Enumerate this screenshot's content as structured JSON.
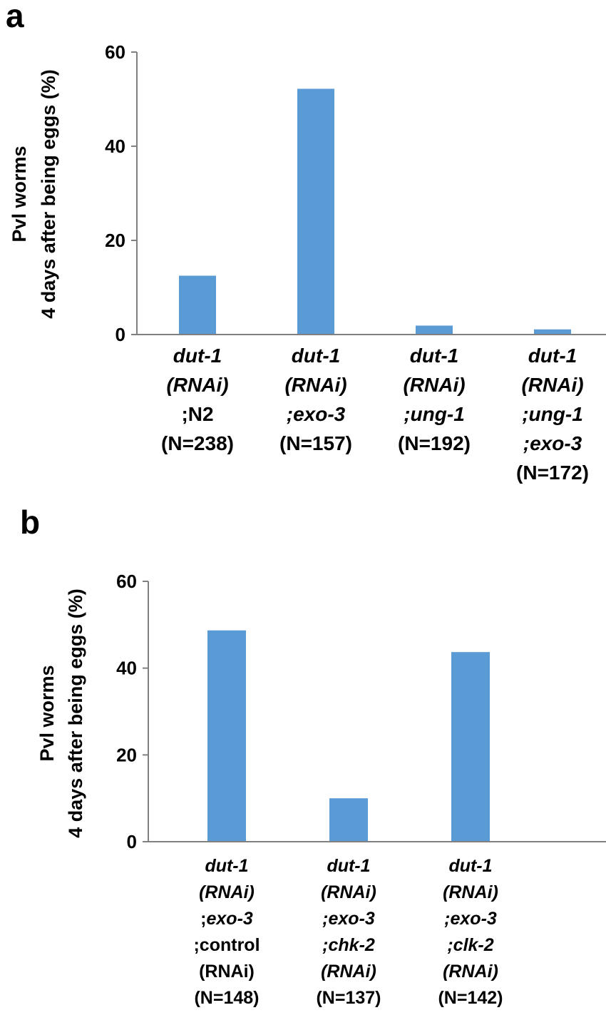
{
  "chart_data": [
    {
      "type": "bar",
      "panel": "a",
      "ylabel_lines": [
        "Pvl worms",
        "4 days after being eggs (%)"
      ],
      "ylim": [
        0,
        60
      ],
      "yticks": [
        0,
        20,
        40,
        60
      ],
      "categories": [
        [
          [
            {
              "t": "dut-1",
              "i": true
            }
          ],
          [
            {
              "t": "(RNAi)",
              "i": true
            }
          ],
          [
            {
              "t": ";N2",
              "i": false
            }
          ],
          [
            {
              "t": "(N=238)",
              "i": false
            }
          ]
        ],
        [
          [
            {
              "t": "dut-1",
              "i": true
            }
          ],
          [
            {
              "t": "(RNAi)",
              "i": true
            }
          ],
          [
            {
              "t": ";exo-3",
              "i": true
            }
          ],
          [
            {
              "t": "(N=157)",
              "i": false
            }
          ]
        ],
        [
          [
            {
              "t": "dut-1",
              "i": true
            }
          ],
          [
            {
              "t": "(RNAi)",
              "i": true
            }
          ],
          [
            {
              "t": ";ung-1",
              "i": true
            }
          ],
          [
            {
              "t": "(N=192)",
              "i": false
            }
          ]
        ],
        [
          [
            {
              "t": "dut-1",
              "i": true
            }
          ],
          [
            {
              "t": "(RNAi)",
              "i": true
            }
          ],
          [
            {
              "t": ";ung-1",
              "i": true
            }
          ],
          [
            {
              "t": ";exo-3",
              "i": true
            }
          ],
          [
            {
              "t": "(N=172)",
              "i": false
            }
          ]
        ]
      ],
      "values": [
        12.5,
        52.2,
        1.9,
        1.1
      ],
      "bar_color": "#5B9BD5"
    },
    {
      "type": "bar",
      "panel": "b",
      "ylabel_lines": [
        "Pvl worms",
        "4 days after being eggs (%)"
      ],
      "ylim": [
        0,
        60
      ],
      "yticks": [
        0,
        20,
        40,
        60
      ],
      "categories": [
        [
          [
            {
              "t": "dut-1",
              "i": true
            }
          ],
          [
            {
              "t": "(RNAi)",
              "i": true
            }
          ],
          [
            {
              "t": ";",
              "i": false
            },
            {
              "t": "exo-3",
              "i": true
            }
          ],
          [
            {
              "t": ";control",
              "i": false
            }
          ],
          [
            {
              "t": "(RNAi)",
              "i": false
            }
          ],
          [
            {
              "t": "(N=148)",
              "i": false
            }
          ]
        ],
        [
          [
            {
              "t": "dut-1",
              "i": true
            }
          ],
          [
            {
              "t": "(RNAi)",
              "i": true
            }
          ],
          [
            {
              "t": ";exo-3",
              "i": true
            }
          ],
          [
            {
              "t": ";chk-2",
              "i": true
            }
          ],
          [
            {
              "t": "(RNAi)",
              "i": true
            }
          ],
          [
            {
              "t": "(N=137)",
              "i": false
            }
          ]
        ],
        [
          [
            {
              "t": "dut-1",
              "i": true
            }
          ],
          [
            {
              "t": "(RNAi)",
              "i": true
            }
          ],
          [
            {
              "t": ";exo-3",
              "i": true
            }
          ],
          [
            {
              "t": ";clk-2",
              "i": true
            }
          ],
          [
            {
              "t": "(RNAi)",
              "i": true
            }
          ],
          [
            {
              "t": "(N=142)",
              "i": false
            }
          ]
        ]
      ],
      "values": [
        48.7,
        10.0,
        43.7
      ],
      "bar_color": "#5B9BD5"
    }
  ]
}
